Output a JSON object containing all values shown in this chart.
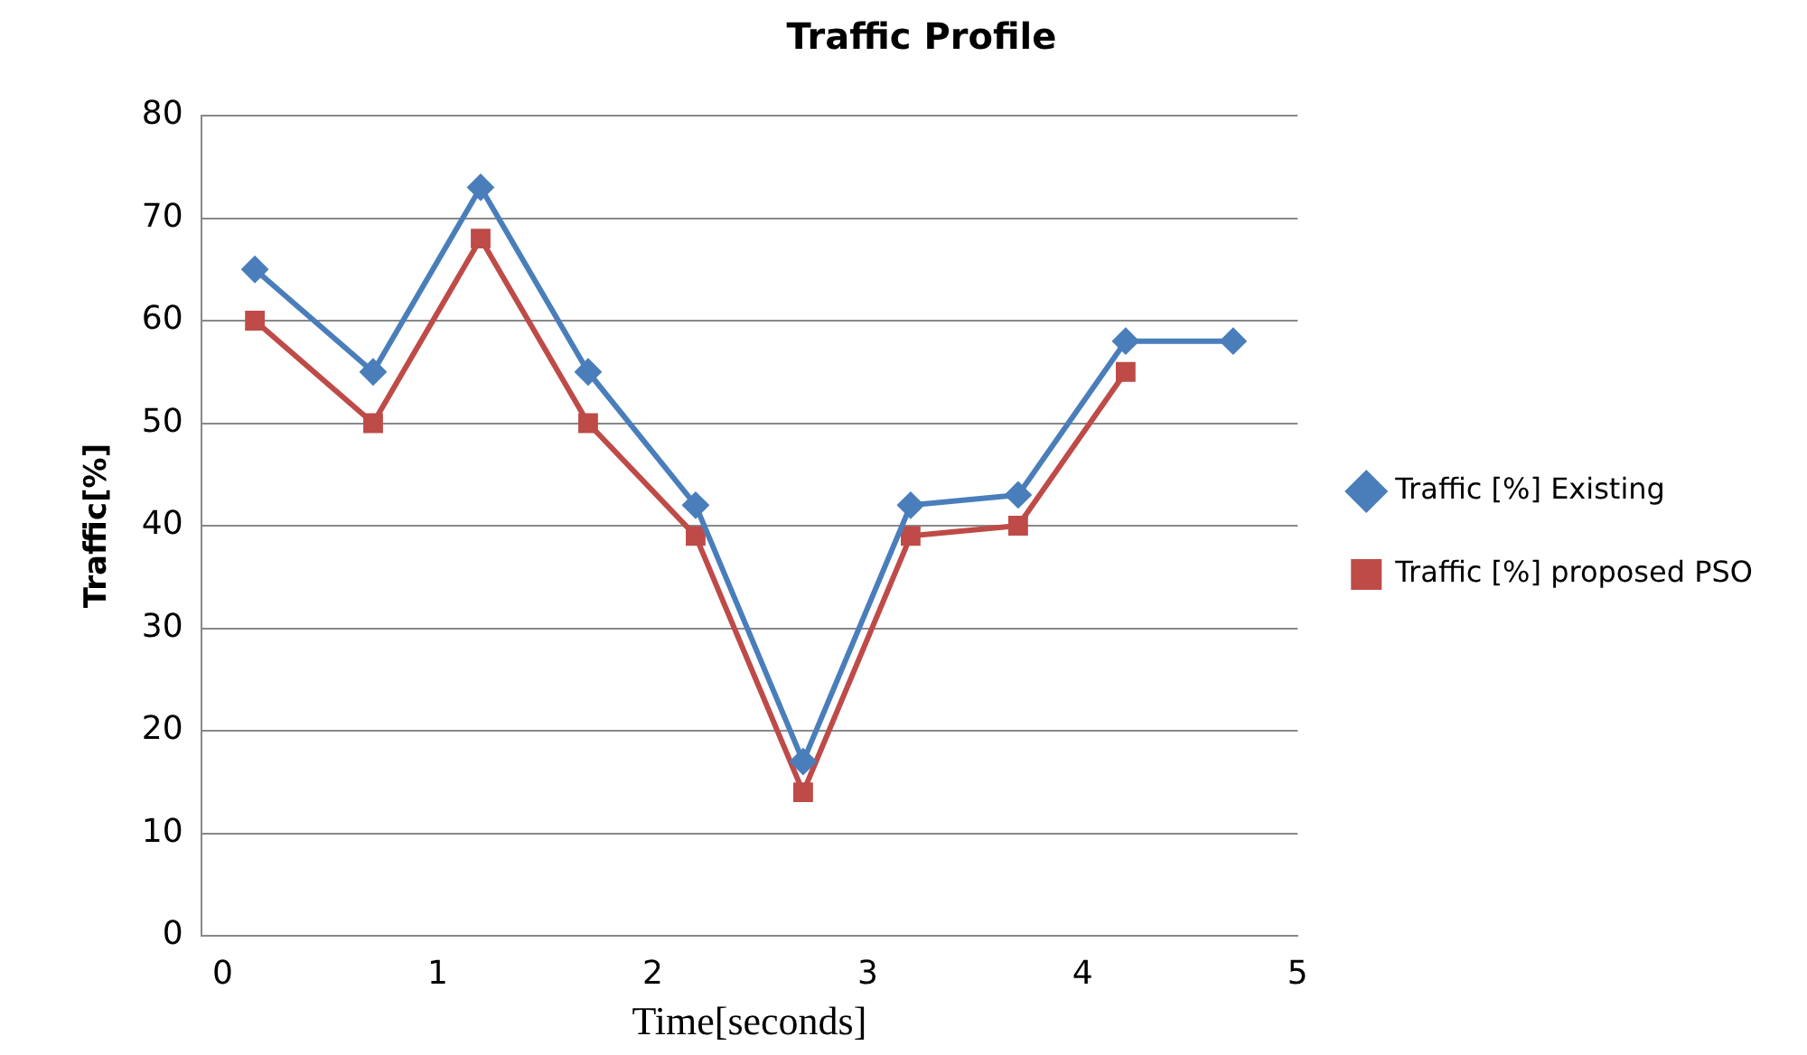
{
  "chart_data": {
    "type": "line",
    "title": "Traffic Profile",
    "xlabel": "Time[seconds]",
    "ylabel": "Traffic[%]",
    "x": [
      0.15,
      0.7,
      1.2,
      1.7,
      2.2,
      2.7,
      3.2,
      3.7,
      4.2,
      4.7
    ],
    "series": [
      {
        "name": "Traffic [%] Existing",
        "color": "#4a7ebb",
        "marker": "diamond",
        "values": [
          65,
          55,
          73,
          55,
          42,
          17,
          42,
          43,
          58,
          58
        ]
      },
      {
        "name": "Traffic [%] proposed PSO",
        "color": "#be4b48",
        "marker": "square",
        "values": [
          60,
          50,
          68,
          50,
          39,
          14,
          39,
          40,
          55,
          null
        ]
      }
    ],
    "xlim": [
      -0.1,
      5
    ],
    "xticks": [
      0,
      1,
      2,
      3,
      4,
      5
    ],
    "ylim": [
      0,
      80
    ],
    "yticks": [
      0,
      10,
      20,
      30,
      40,
      50,
      60,
      70,
      80
    ],
    "grid": "y",
    "legend": "right",
    "line_style": "solid"
  }
}
